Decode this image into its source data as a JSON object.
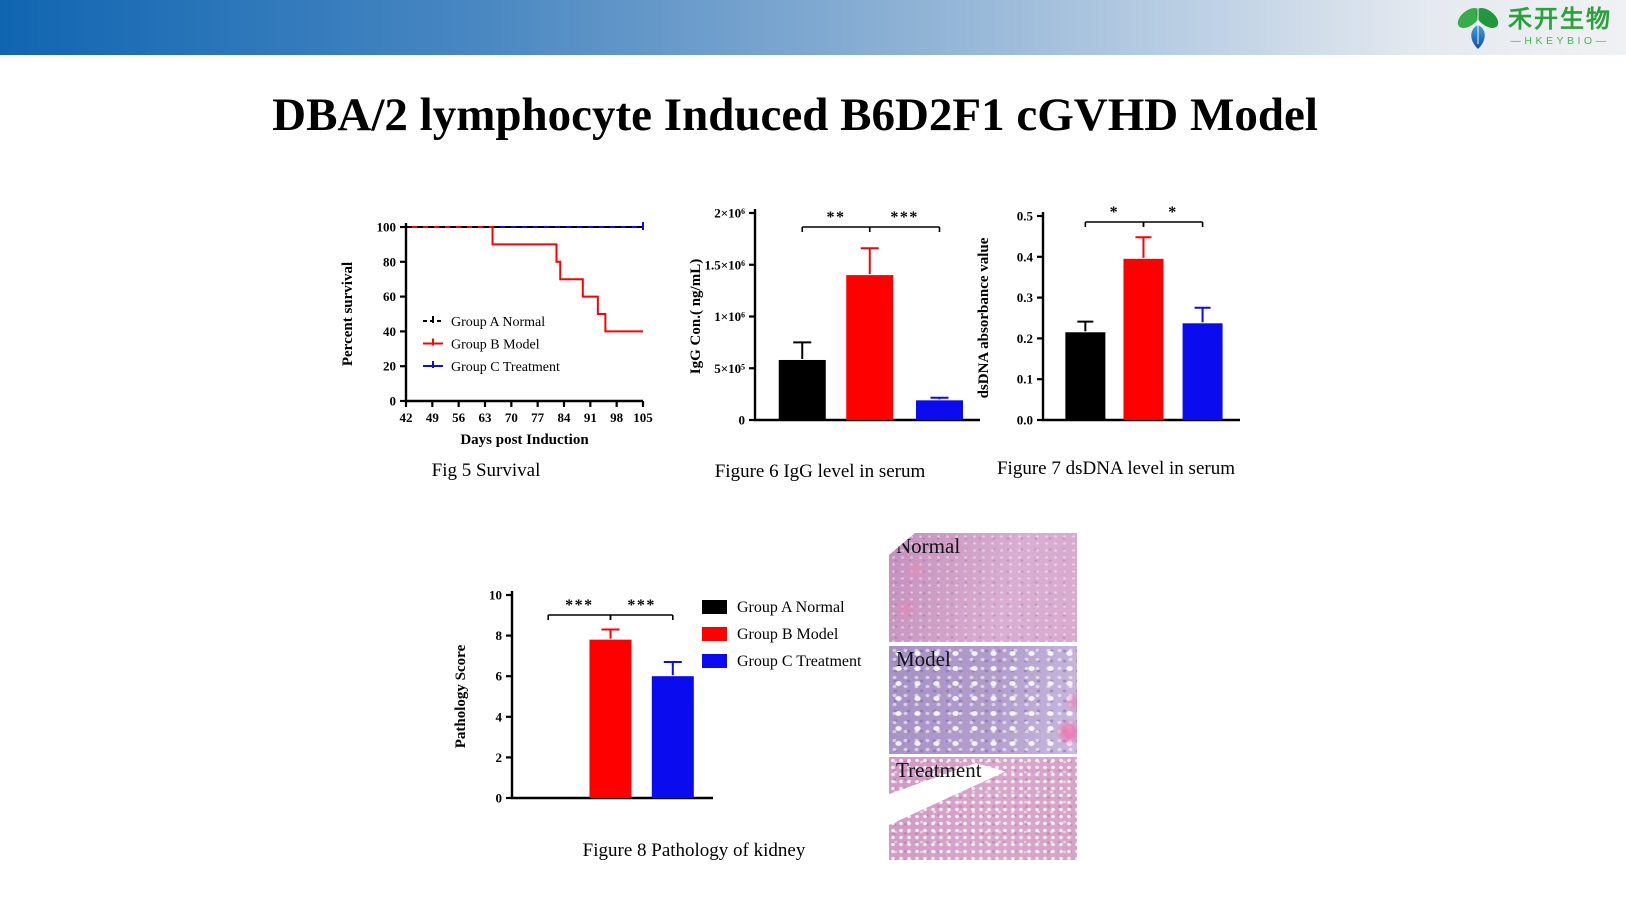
{
  "topbar": {
    "brand_cn": "禾开生物",
    "brand_en": "—HKEYBIO—"
  },
  "title": "DBA/2 lymphocyte Induced B6D2F1 cGVHD Model",
  "colors": {
    "group_a": "#000000",
    "group_b": "#ff0000",
    "group_c": "#0b0bf0",
    "accent_green": "#2aa23c",
    "topbar_blue": "#1065b1"
  },
  "chart_data": [
    {
      "id": "fig5",
      "type": "line",
      "caption": "Fig 5 Survival",
      "xlabel": "Days post Induction",
      "ylabel": "Percent survival",
      "xlim": [
        42,
        105
      ],
      "ylim": [
        0,
        100
      ],
      "xticks": [
        42,
        49,
        56,
        63,
        70,
        77,
        84,
        91,
        98,
        105
      ],
      "yticks": [
        0,
        20,
        40,
        60,
        80,
        100
      ],
      "grid": false,
      "legend_position": "inside-center-left",
      "series": [
        {
          "name": "Group A Normal",
          "color": "#000000",
          "dash": true,
          "points": [
            [
              42,
              100
            ],
            [
              105,
              100
            ]
          ]
        },
        {
          "name": "Group B Model",
          "color": "#ff0000",
          "dash": false,
          "points": [
            [
              42,
              100
            ],
            [
              65,
              100
            ],
            [
              65,
              90
            ],
            [
              82,
              90
            ],
            [
              82,
              80
            ],
            [
              83,
              80
            ],
            [
              83,
              70
            ],
            [
              89,
              70
            ],
            [
              89,
              60
            ],
            [
              93,
              60
            ],
            [
              93,
              50
            ],
            [
              95,
              50
            ],
            [
              95,
              40
            ],
            [
              105,
              40
            ]
          ]
        },
        {
          "name": "Group C Treatment",
          "color": "#0b0bf0",
          "dash": false,
          "points": [
            [
              42,
              100
            ],
            [
              105,
              100
            ]
          ]
        }
      ]
    },
    {
      "id": "fig6",
      "type": "bar",
      "caption": "Figure 6 IgG level in serum",
      "xlabel": "",
      "ylabel": "IgG Con.( ng/mL)",
      "ylim": [
        0,
        2000000
      ],
      "yticks": [
        0,
        500000,
        1000000,
        1500000,
        2000000
      ],
      "ytick_labels": [
        "0",
        "5×10⁵",
        "1×10⁶",
        "1.5×10⁶",
        "2×10⁶"
      ],
      "categories": [
        "Group A Normal",
        "Group B Model",
        "Group C Treatment"
      ],
      "values": [
        580000,
        1400000,
        190000
      ],
      "errors_high": [
        750000,
        1660000,
        215000
      ],
      "bar_colors": [
        "#000000",
        "#ff0000",
        "#0b0bf0"
      ],
      "significance": [
        {
          "from": 0,
          "to": 1,
          "label": "**"
        },
        {
          "from": 1,
          "to": 2,
          "label": "***"
        }
      ]
    },
    {
      "id": "fig7",
      "type": "bar",
      "caption": "Figure 7 dsDNA level in serum",
      "xlabel": "",
      "ylabel": "dsDNA  absorbance value",
      "ylim": [
        0,
        0.5
      ],
      "yticks": [
        0,
        0.1,
        0.2,
        0.3,
        0.4,
        0.5
      ],
      "ytick_labels": [
        "0.0",
        "0.1",
        "0.2",
        "0.3",
        "0.4",
        "0.5"
      ],
      "categories": [
        "Group A Normal",
        "Group B Model",
        "Group C Treatment"
      ],
      "values": [
        0.215,
        0.395,
        0.237
      ],
      "errors_high": [
        0.241,
        0.448,
        0.275
      ],
      "bar_colors": [
        "#000000",
        "#ff0000",
        "#0b0bf0"
      ],
      "significance": [
        {
          "from": 0,
          "to": 1,
          "label": "*"
        },
        {
          "from": 1,
          "to": 2,
          "label": "*"
        }
      ]
    },
    {
      "id": "fig8",
      "type": "bar",
      "caption": "Figure 8 Pathology of kidney",
      "xlabel": "",
      "ylabel": "Pathology Score",
      "ylim": [
        0,
        10
      ],
      "yticks": [
        0,
        2,
        4,
        6,
        8,
        10
      ],
      "ytick_labels": [
        "0",
        "2",
        "4",
        "6",
        "8",
        "10"
      ],
      "categories": [
        "Group A Normal",
        "Group B Model",
        "Group C Treatment"
      ],
      "values": [
        0,
        7.8,
        6.0
      ],
      "errors_high": [
        0,
        8.3,
        6.7
      ],
      "bar_colors": [
        "#000000",
        "#ff0000",
        "#0b0bf0"
      ],
      "legend": [
        "Group A Normal",
        "Group B Model",
        "Group C Treatment"
      ],
      "legend_position": "right",
      "significance": [
        {
          "from": 0,
          "to": 1,
          "label": "***"
        },
        {
          "from": 1,
          "to": 2,
          "label": "***"
        }
      ]
    }
  ],
  "histology": {
    "panels": [
      {
        "label": "Normal"
      },
      {
        "label": "Model"
      },
      {
        "label": "Treatment"
      }
    ]
  }
}
